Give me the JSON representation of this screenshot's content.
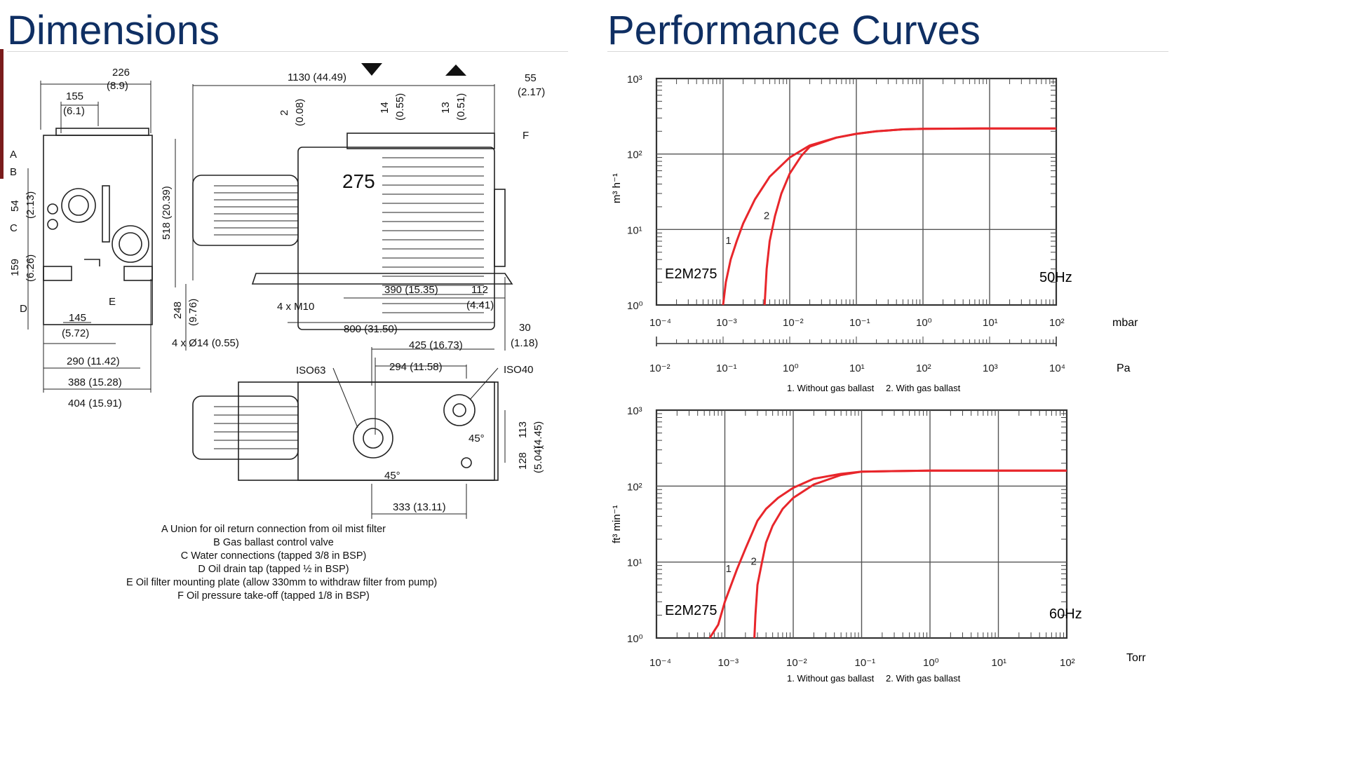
{
  "dimensions": {
    "title": "Dimensions",
    "labels": {
      "d226": "226",
      "d226_in": "(8.9)",
      "d155": "155",
      "d155_in": "(6.1)",
      "d1130": "1130 (44.49)",
      "d55": "55",
      "d55_in": "(2.17)",
      "d2": "2",
      "d2_in": "(0.08)",
      "d14": "14",
      "d14_in": "(0.55)",
      "d13": "13",
      "d13_in": "(0.51)",
      "d54": "54",
      "d54_in": "(2.13)",
      "d159": "159",
      "d159_in": "(6.26)",
      "d518": "518 (20.39)",
      "d248": "248",
      "d248_in": "(9.76)",
      "d145": "145",
      "d145_in": "(5.72)",
      "d290": "290 (11.42)",
      "d388": "388 (15.28)",
      "d404": "404 (15.91)",
      "d4xM10": "4 x M10",
      "d390": "390 (15.35)",
      "d112": "112",
      "d112_in": "(4.41)",
      "d800": "800 (31.50)",
      "d30": "30",
      "d30_in": "(1.18)",
      "d4x14": "4 x Ø14 (0.55)",
      "d425": "425 (16.73)",
      "d294": "294 (11.58)",
      "iso63": "ISO63",
      "iso40": "ISO40",
      "d113": "113",
      "d113_in": "(4.45)",
      "d128": "128",
      "d128_in": "(5.04)",
      "d333": "333 (13.11)",
      "ang45a": "45°",
      "ang45b": "45°",
      "pump_model": "275",
      "A": "A",
      "B": "B",
      "C": "C",
      "D": "D",
      "E": "E",
      "F": "F"
    },
    "legend": [
      "A Union for oil return connection from oil mist filter",
      "B Gas ballast control valve",
      "C Water connections (tapped 3/8 in BSP)",
      "D Oil drain tap (tapped ½ in BSP)",
      "E Oil filter mounting plate (allow 330mm to withdraw filter from pump)",
      "F Oil pressure take-off (tapped 1/8 in BSP)"
    ]
  },
  "performance": {
    "title": "Performance Curves"
  },
  "chart_data": [
    {
      "type": "line",
      "model": "E2M275",
      "frequency": "50Hz",
      "ylabel": "m³ h⁻¹",
      "x_scale": "log",
      "y_scale": "log",
      "xlim": [
        0.0001,
        100
      ],
      "ylim": [
        1,
        1000
      ],
      "x_unit": "mbar",
      "x_ticks": [
        "10⁻⁴",
        "10⁻³",
        "10⁻²",
        "10⁻¹",
        "10⁰",
        "10¹",
        "10²"
      ],
      "x2_unit": "Pa",
      "x2_ticks": [
        "10⁻²",
        "10⁻¹",
        "10⁰",
        "10¹",
        "10²",
        "10³",
        "10⁴"
      ],
      "y_ticks": [
        "10⁰",
        "10¹",
        "10²",
        "10³"
      ],
      "grid": true,
      "legend": [
        "1. Without gas ballast",
        "2. With gas ballast"
      ],
      "series": [
        {
          "name": "1",
          "color": "#e8262b",
          "x": [
            0.001,
            0.0011,
            0.0013,
            0.0016,
            0.002,
            0.003,
            0.005,
            0.01,
            0.02,
            0.05,
            0.1,
            0.2,
            0.5,
            1,
            10,
            100
          ],
          "y": [
            1,
            2,
            4,
            7,
            12,
            25,
            50,
            90,
            130,
            165,
            185,
            200,
            212,
            216,
            218,
            218
          ]
        },
        {
          "name": "2",
          "color": "#e8262b",
          "x": [
            0.0042,
            0.0045,
            0.005,
            0.006,
            0.0075,
            0.01,
            0.015,
            0.02,
            0.05,
            0.1,
            0.2,
            0.5,
            1,
            10,
            100
          ],
          "y": [
            1,
            3,
            7,
            15,
            30,
            55,
            95,
            125,
            165,
            185,
            200,
            212,
            216,
            218,
            218
          ]
        }
      ]
    },
    {
      "type": "line",
      "model": "E2M275",
      "frequency": "60Hz",
      "ylabel": "ft³ min⁻¹",
      "x_scale": "log",
      "y_scale": "log",
      "xlim": [
        0.0001,
        100
      ],
      "ylim": [
        1,
        1000
      ],
      "x_unit": "Torr",
      "x_ticks": [
        "10⁻⁴",
        "10⁻³",
        "10⁻²",
        "10⁻¹",
        "10⁰",
        "10¹",
        "10²"
      ],
      "y_ticks": [
        "10⁰",
        "10¹",
        "10²",
        "10³"
      ],
      "grid": true,
      "legend": [
        "1. Without gas ballast",
        "2. With gas ballast"
      ],
      "series": [
        {
          "name": "1",
          "color": "#e8262b",
          "x": [
            0.0006,
            0.0008,
            0.001,
            0.0015,
            0.002,
            0.003,
            0.004,
            0.006,
            0.01,
            0.02,
            0.05,
            0.1,
            1,
            10,
            100
          ],
          "y": [
            0.8,
            1.5,
            3,
            8,
            15,
            35,
            50,
            70,
            95,
            125,
            145,
            155,
            160,
            160,
            160
          ]
        },
        {
          "name": "2",
          "color": "#e8262b",
          "x": [
            0.0027,
            0.0028,
            0.003,
            0.0035,
            0.004,
            0.005,
            0.007,
            0.01,
            0.02,
            0.05,
            0.1,
            1,
            10,
            100
          ],
          "y": [
            1,
            2,
            5,
            10,
            18,
            30,
            50,
            70,
            105,
            140,
            155,
            160,
            160,
            160
          ]
        }
      ]
    }
  ]
}
